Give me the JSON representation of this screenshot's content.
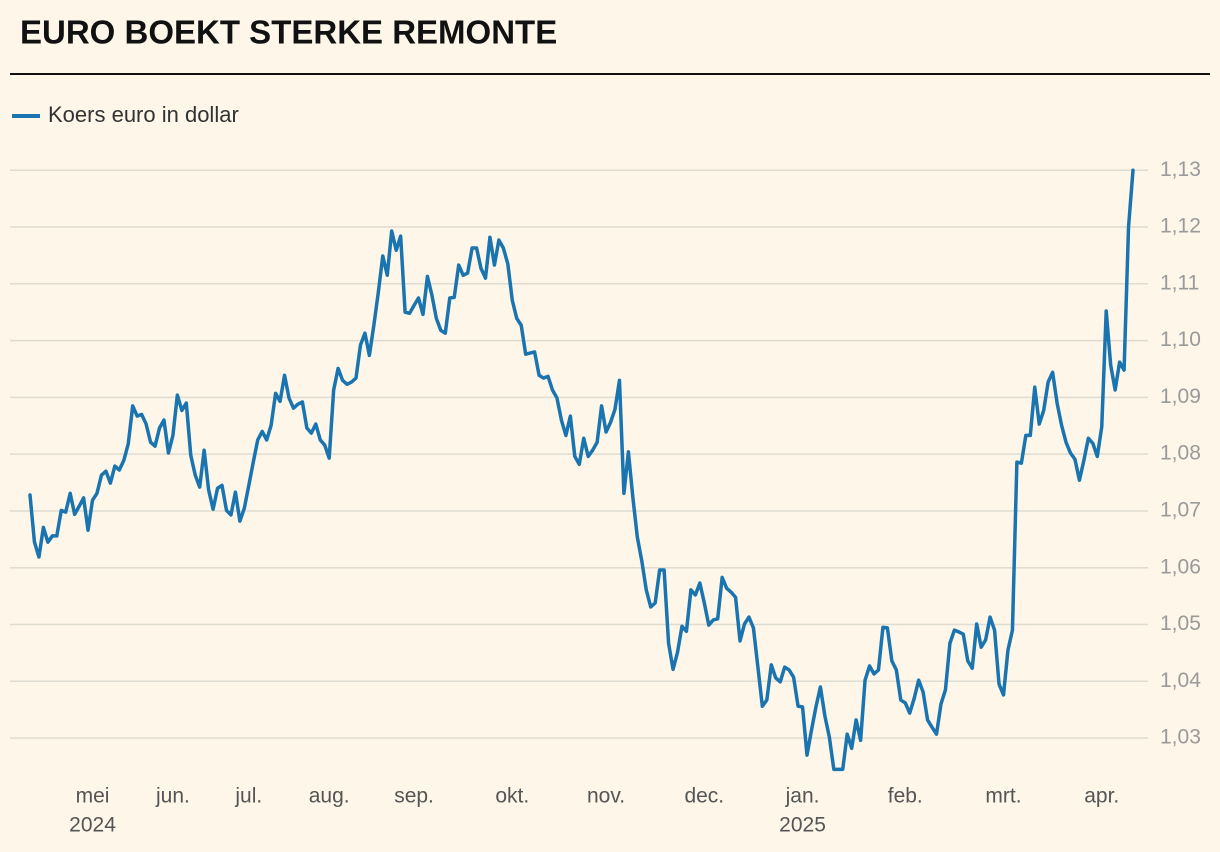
{
  "chart_data": {
    "type": "line",
    "title": "EURO BOEKT STERKE REMONTE",
    "series": [
      {
        "name": "Koers euro in dollar",
        "color": "#1a74b0",
        "values": [
          1.0728,
          1.0645,
          1.0619,
          1.0671,
          1.0645,
          1.0656,
          1.0656,
          1.0701,
          1.0698,
          1.0731,
          1.0694,
          1.0708,
          1.0723,
          1.0666,
          1.0719,
          1.0731,
          1.0763,
          1.077,
          1.0749,
          1.0779,
          1.0772,
          1.0789,
          1.0818,
          1.0885,
          1.0867,
          1.087,
          1.0853,
          1.0821,
          1.0814,
          1.0846,
          1.086,
          1.0802,
          1.0833,
          1.0904,
          1.0877,
          1.089,
          1.0798,
          1.0763,
          1.0742,
          1.0807,
          1.0737,
          1.0703,
          1.074,
          1.0745,
          1.0701,
          1.0693,
          1.0733,
          1.0682,
          1.0705,
          1.0745,
          1.0786,
          1.0825,
          1.084,
          1.0825,
          1.0851,
          1.0907,
          1.0893,
          1.0939,
          1.0899,
          1.0881,
          1.0888,
          1.0892,
          1.0846,
          1.0837,
          1.0853,
          1.0825,
          1.0816,
          1.0793,
          1.0913,
          1.0951,
          1.093,
          1.0923,
          1.0927,
          1.0934,
          1.0992,
          1.1013,
          1.0974,
          1.1027,
          1.1085,
          1.1149,
          1.1115,
          1.1193,
          1.1159,
          1.1184,
          1.105,
          1.1048,
          1.1062,
          1.1075,
          1.1046,
          1.1113,
          1.108,
          1.1039,
          1.1018,
          1.1013,
          1.1075,
          1.1076,
          1.1133,
          1.1115,
          1.1119,
          1.1163,
          1.1163,
          1.1127,
          1.111,
          1.1182,
          1.1133,
          1.1177,
          1.1163,
          1.1135,
          1.1071,
          1.1039,
          1.1027,
          1.0976,
          1.0978,
          1.098,
          1.0939,
          1.0934,
          1.0937,
          1.0913,
          1.0899,
          1.086,
          1.0833,
          1.0867,
          1.0796,
          1.0782,
          1.0828,
          1.0796,
          1.0807,
          1.0821,
          1.0885,
          1.0839,
          1.0856,
          1.0879,
          1.093,
          1.0731,
          1.0804,
          1.0724,
          1.0654,
          1.0612,
          1.0561,
          1.0531,
          1.0538,
          1.0596,
          1.0596,
          1.0467,
          1.0421,
          1.0451,
          1.0497,
          1.0488,
          1.0561,
          1.0552,
          1.0573,
          1.0538,
          1.0499,
          1.0508,
          1.051,
          1.0583,
          1.0564,
          1.0557,
          1.0548,
          1.0471,
          1.0501,
          1.0513,
          1.0494,
          1.0425,
          1.0356,
          1.0367,
          1.0429,
          1.0406,
          1.0399,
          1.0425,
          1.042,
          1.0407,
          1.0356,
          1.0355,
          1.027,
          1.0314,
          1.0355,
          1.039,
          1.0339,
          1.0302,
          1.0245,
          1.0245,
          1.0245,
          1.0307,
          1.0282,
          1.0332,
          1.0296,
          1.0402,
          1.0427,
          1.0413,
          1.042,
          1.0495,
          1.0494,
          1.0436,
          1.042,
          1.0367,
          1.0362,
          1.0344,
          1.037,
          1.0402,
          1.0381,
          1.0332,
          1.0319,
          1.0307,
          1.036,
          1.0385,
          1.0467,
          1.049,
          1.0487,
          1.0483,
          1.0436,
          1.0423,
          1.0501,
          1.046,
          1.0473,
          1.0513,
          1.049,
          1.0395,
          1.0376,
          1.0455,
          1.049,
          1.0786,
          1.0784,
          1.0833,
          1.0833,
          1.0918,
          1.0853,
          1.0877,
          1.0927,
          1.0944,
          1.089,
          1.0851,
          1.0821,
          1.0802,
          1.0791,
          1.0754,
          1.0789,
          1.0828,
          1.0819,
          1.0796,
          1.0848,
          1.1052,
          1.0957,
          1.0913,
          1.0962,
          1.0948,
          1.12,
          1.13
        ]
      }
    ],
    "ylim": [
      1.0235,
      1.1318
    ],
    "yticks": [
      {
        "value": 1.03,
        "label": "1,03"
      },
      {
        "value": 1.04,
        "label": "1,04"
      },
      {
        "value": 1.05,
        "label": "1,05"
      },
      {
        "value": 1.06,
        "label": "1,06"
      },
      {
        "value": 1.07,
        "label": "1,07"
      },
      {
        "value": 1.08,
        "label": "1,08"
      },
      {
        "value": 1.09,
        "label": "1,09"
      },
      {
        "value": 1.1,
        "label": "1,10"
      },
      {
        "value": 1.11,
        "label": "1,11"
      },
      {
        "value": 1.12,
        "label": "1,12"
      },
      {
        "value": 1.13,
        "label": "1,13"
      }
    ],
    "xticks": [
      {
        "value": 14,
        "label": "mei"
      },
      {
        "value": 32,
        "label": "jun."
      },
      {
        "value": 49,
        "label": "jul."
      },
      {
        "value": 67,
        "label": "aug."
      },
      {
        "value": 86,
        "label": "sep."
      },
      {
        "value": 108,
        "label": "okt."
      },
      {
        "value": 129,
        "label": "nov."
      },
      {
        "value": 151,
        "label": "dec."
      },
      {
        "value": 173,
        "label": "jan."
      },
      {
        "value": 196,
        "label": "feb."
      },
      {
        "value": 218,
        "label": "mrt."
      },
      {
        "value": 240,
        "label": "apr."
      }
    ],
    "year_labels": [
      {
        "value": 14,
        "label": "2024"
      },
      {
        "value": 173,
        "label": "2025"
      }
    ],
    "grid": true,
    "legend": "top-left"
  }
}
